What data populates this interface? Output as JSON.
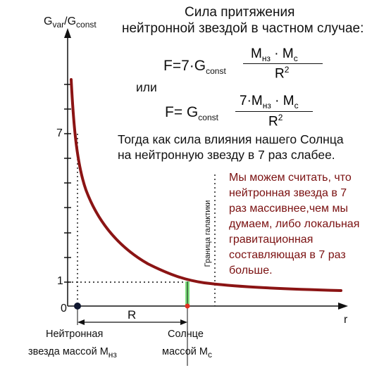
{
  "axes": {
    "y_label_main": "G",
    "y_label_sub1": "var",
    "y_label_slash": "/G",
    "y_label_sub2": "const",
    "x_label": "r",
    "tick_7": "7",
    "tick_1": "1",
    "tick_0": "0"
  },
  "title": {
    "line1": "Сила притяжения",
    "line2": "нейтронной звездой в частном случае:"
  },
  "formula1": {
    "lhs": "F=7·G",
    "lhs_sub": "const",
    "numerator": "M",
    "numerator_sub1": "нз",
    "numerator_dot": " · M",
    "numerator_sub2": "c",
    "denominator": "R",
    "denominator_sup": "2"
  },
  "or_text": "или",
  "formula2": {
    "lhs": "F= G",
    "lhs_sub": "const",
    "numerator": "7·M",
    "numerator_sub1": "нз",
    "numerator_dot": " · M",
    "numerator_sub2": "c",
    "denominator": "R",
    "denominator_sup": "2"
  },
  "statement": {
    "line1": "Тогда как сила влияния нашего Солнца",
    "line2": "на нейтронную звезду  в 7 раз слабее."
  },
  "conclusion": {
    "line1": "Мы можем считать, что",
    "line2": "нейтронная звезда в 7",
    "line3": "раз массивнее,чем мы",
    "line4": "думаем, либо локальная",
    "line5": "гравитационная",
    "line6": "составляющая в 7 раз",
    "line7": "больше."
  },
  "galaxy_border_label": "Граница галактики",
  "distance_label": "R",
  "neutron_star": {
    "line1": "Нейтронная",
    "line2": "звезда массой M",
    "line2_sub": "нз"
  },
  "sun": {
    "line1": "Солнце",
    "line2": "массой M",
    "line2_sub": "c"
  },
  "colors": {
    "curve": "#8b1414",
    "conclusion_text": "#7a1010",
    "sun_highlight": "#7ee07e",
    "sun_marker": "#e03020",
    "neutron_marker": "#101830"
  }
}
